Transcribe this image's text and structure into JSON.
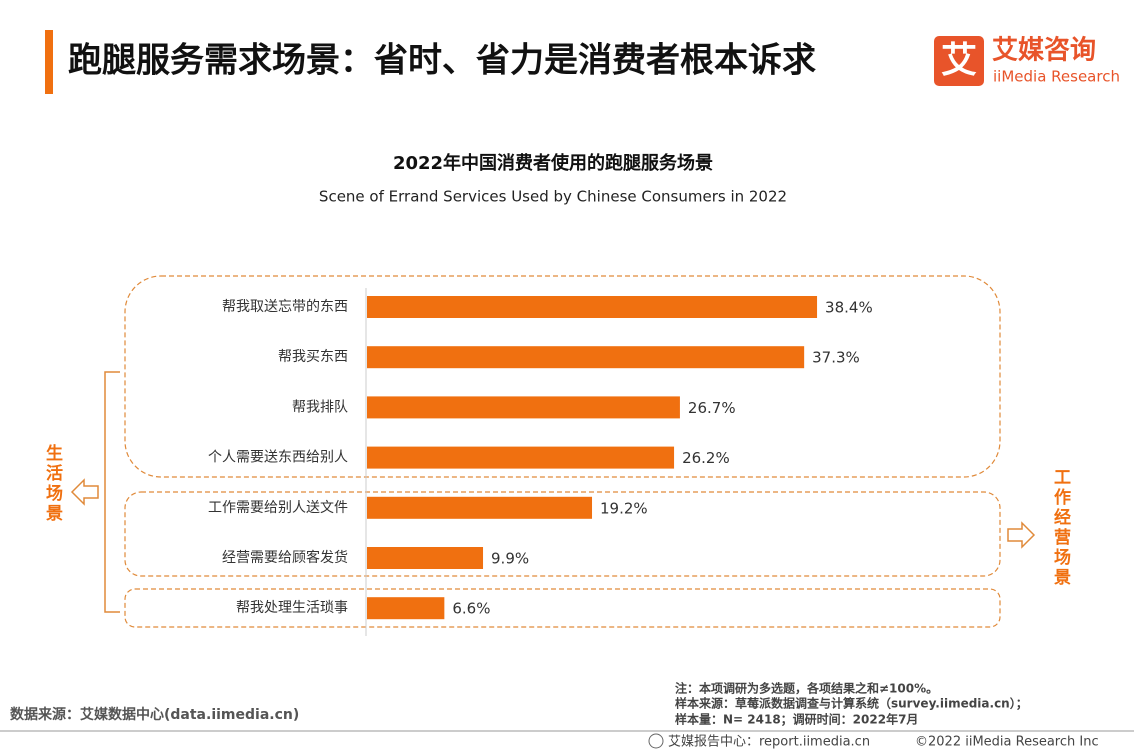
{
  "header": {
    "title": "跑腿服务需求场景：省时、省力是消费者根本诉求",
    "logo_cn": "艾媒咨询",
    "logo_en": "iiMedia Research",
    "logo_mark": "艾"
  },
  "chart_data": {
    "type": "bar",
    "orientation": "horizontal",
    "title": "2022年中国消费者使用的跑腿服务场景",
    "subtitle": "Scene of Errand Services Used by Chinese Consumers in 2022",
    "categories": [
      "帮我取送忘带的东西",
      "帮我买东西",
      "帮我排队",
      "个人需要送东西给别人",
      "工作需要给别人送文件",
      "经营需要给顾客发货",
      "帮我处理生活琐事"
    ],
    "values": [
      38.4,
      37.3,
      26.7,
      26.2,
      19.2,
      9.9,
      6.6
    ],
    "value_labels": [
      "38.4%",
      "37.3%",
      "26.7%",
      "26.2%",
      "19.2%",
      "9.9%",
      "6.6%"
    ],
    "color": "#f07010",
    "group_labels": [
      "生活场景",
      "工作经营场景"
    ]
  },
  "footer": {
    "source": "数据来源：艾媒数据中心(data.iimedia.cn)",
    "notes": [
      "注：本项调研为多选题，各项结果之和≠100%。",
      "样本来源：草莓派数据调查与计算系统（survey.iimedia.cn）；",
      "样本量：N= 2418；调研时间：2022年7月"
    ],
    "report_center": "艾媒报告中心：report.iimedia.cn",
    "copyright": "©2022  iiMedia Research  Inc"
  }
}
